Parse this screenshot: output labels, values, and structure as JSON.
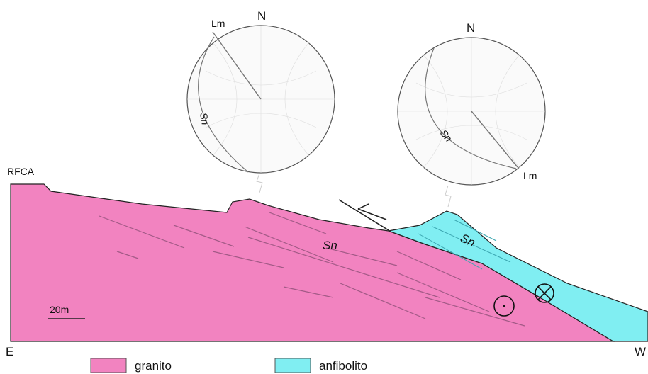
{
  "stereonets": [
    {
      "north": "N",
      "lineation": "Lm",
      "foliation": "Sn"
    },
    {
      "north": "N",
      "lineation": "Lm",
      "foliation": "Sn"
    }
  ],
  "section": {
    "station": "RFCA",
    "foliation_labels": [
      "Sn",
      "Sn"
    ],
    "scale": "20m",
    "left": "E",
    "right": "W"
  },
  "legend": [
    {
      "label": "granito"
    },
    {
      "label": "anfibolito"
    }
  ]
}
